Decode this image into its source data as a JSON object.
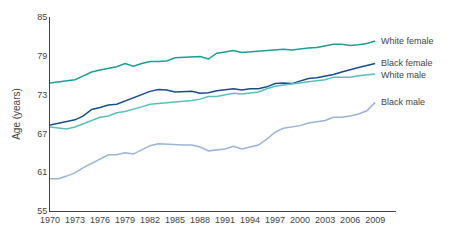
{
  "chart_data": {
    "type": "line",
    "y_label": "Age (years)",
    "x": [
      1970,
      1971,
      1972,
      1973,
      1974,
      1975,
      1976,
      1977,
      1978,
      1979,
      1980,
      1981,
      1982,
      1983,
      1984,
      1985,
      1986,
      1987,
      1988,
      1989,
      1990,
      1991,
      1992,
      1993,
      1994,
      1995,
      1996,
      1997,
      1998,
      1999,
      2000,
      2001,
      2002,
      2003,
      2004,
      2005,
      2006,
      2007,
      2008,
      2009
    ],
    "series": [
      {
        "name": "White female",
        "color": "#1a9e96",
        "values": [
          74.8,
          75.0,
          75.1,
          75.3,
          75.9,
          76.5,
          76.8,
          77.1,
          77.3,
          77.8,
          77.4,
          77.8,
          78.1,
          78.1,
          78.2,
          78.7,
          78.8,
          78.9,
          78.9,
          78.5,
          79.4,
          79.6,
          79.8,
          79.5,
          79.6,
          79.6,
          79.7,
          79.9,
          80.0,
          79.9,
          80.1,
          80.2,
          80.3,
          80.5,
          80.8,
          80.8,
          80.6,
          80.7,
          80.9,
          81.3
        ]
      },
      {
        "name": "Black female",
        "color": "#1a4d8f",
        "values": [
          68.3,
          68.6,
          68.9,
          69.1,
          69.7,
          70.7,
          71.0,
          71.4,
          71.5,
          72.0,
          72.5,
          73.0,
          73.5,
          73.8,
          73.7,
          73.4,
          73.5,
          73.5,
          73.2,
          73.3,
          73.6,
          73.8,
          73.9,
          73.7,
          73.9,
          73.9,
          74.2,
          74.7,
          74.8,
          74.7,
          75.1,
          75.5,
          75.6,
          75.8,
          76.1,
          76.5,
          76.9,
          77.2,
          77.5,
          77.8
        ]
      },
      {
        "name": "White male",
        "color": "#5bbfb8",
        "values": [
          68.0,
          67.9,
          67.7,
          68.0,
          68.5,
          68.9,
          69.5,
          69.7,
          70.2,
          70.4,
          70.7,
          71.1,
          71.5,
          71.6,
          71.8,
          71.9,
          72.0,
          72.1,
          72.3,
          72.7,
          72.7,
          72.9,
          73.2,
          73.1,
          73.3,
          73.4,
          73.9,
          74.3,
          74.5,
          74.6,
          74.8,
          75.0,
          75.1,
          75.3,
          75.7,
          75.7,
          75.7,
          75.9,
          76.0,
          76.2
        ]
      },
      {
        "name": "Black male",
        "color": "#9bb4d8",
        "values": [
          60.0,
          60.0,
          60.4,
          60.9,
          61.7,
          62.4,
          63.1,
          63.7,
          63.7,
          64.0,
          63.8,
          64.5,
          65.1,
          65.4,
          65.3,
          65.3,
          65.2,
          65.2,
          64.9,
          64.3,
          64.5,
          64.6,
          65.0,
          64.6,
          64.9,
          65.2,
          66.1,
          67.2,
          67.8,
          68.0,
          68.2,
          68.6,
          68.8,
          69.0,
          69.5,
          69.5,
          69.7,
          70.0,
          70.5,
          71.8
        ]
      }
    ],
    "xlim": [
      1970,
      2011.5
    ],
    "xticks": [
      1970,
      1973,
      1976,
      1979,
      1982,
      1985,
      1988,
      1991,
      1994,
      1997,
      2000,
      2003,
      2006,
      2009
    ],
    "ylim": [
      55,
      85
    ],
    "yticks": [
      55,
      61,
      67,
      73,
      79,
      85
    ],
    "grid": false
  }
}
